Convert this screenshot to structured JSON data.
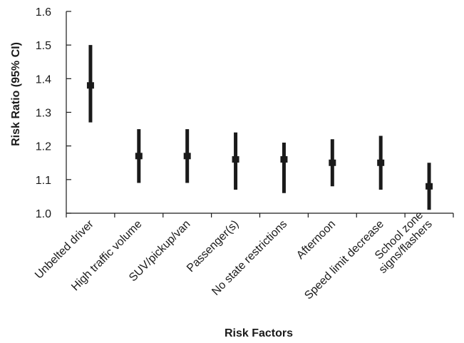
{
  "chart_data": {
    "type": "scatter",
    "subtype": "error-bar",
    "title": "",
    "xlabel": "Risk Factors",
    "ylabel": "Risk Ratio (95% CI)",
    "ylim": [
      1.0,
      1.6
    ],
    "yticks": [
      "1.0",
      "1.1",
      "1.2",
      "1.3",
      "1.4",
      "1.5",
      "1.6"
    ],
    "grid": false,
    "categories": [
      [
        "Unbelted driver"
      ],
      [
        "High traffic volume"
      ],
      [
        "SUV/pickup/van"
      ],
      [
        "Passenger(s)"
      ],
      [
        "No state restrictions"
      ],
      [
        "Afternoon"
      ],
      [
        "Speed limit decrease"
      ],
      [
        "School zone",
        "signs/flashers"
      ]
    ],
    "series": [
      {
        "values": [
          1.38,
          1.17,
          1.17,
          1.16,
          1.16,
          1.15,
          1.15,
          1.08
        ],
        "lower": [
          1.27,
          1.09,
          1.09,
          1.07,
          1.06,
          1.08,
          1.07,
          1.01
        ],
        "upper": [
          1.5,
          1.25,
          1.25,
          1.24,
          1.21,
          1.22,
          1.23,
          1.15
        ]
      }
    ],
    "colors": {
      "mark": "#1a1a1a",
      "axis": "#1a1a1a"
    }
  }
}
